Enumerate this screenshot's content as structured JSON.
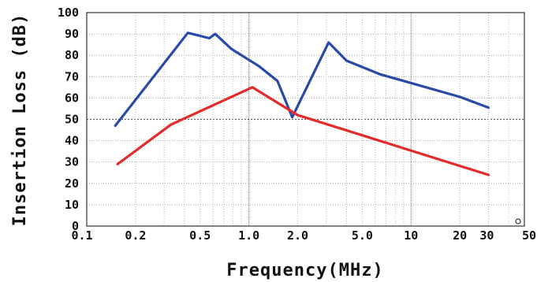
{
  "chart_data": {
    "type": "line",
    "title": "",
    "xlabel": "Frequency(MHz)",
    "ylabel": "Insertion Loss (dB)",
    "x_scale": "log",
    "xlim": [
      0.1,
      50
    ],
    "ylim": [
      0,
      100
    ],
    "x_ticks": [
      {
        "value": 0.1,
        "label": "0.1"
      },
      {
        "value": 0.2,
        "label": "0.2"
      },
      {
        "value": 0.5,
        "label": "0.5"
      },
      {
        "value": 1.0,
        "label": "1.0"
      },
      {
        "value": 2.0,
        "label": "2.0"
      },
      {
        "value": 5.0,
        "label": "5.0"
      },
      {
        "value": 10,
        "label": "10"
      },
      {
        "value": 20,
        "label": "20"
      },
      {
        "value": 30,
        "label": "30"
      },
      {
        "value": 50,
        "label": "50"
      }
    ],
    "y_ticks": [
      0,
      10,
      20,
      30,
      40,
      50,
      60,
      70,
      80,
      90,
      100
    ],
    "grid": true,
    "series": [
      {
        "color": "#2a4aa8",
        "points": [
          [
            0.15,
            47
          ],
          [
            0.42,
            90.5
          ],
          [
            0.57,
            88
          ],
          [
            0.62,
            90
          ],
          [
            0.78,
            83
          ],
          [
            1.15,
            75
          ],
          [
            1.5,
            68
          ],
          [
            1.85,
            51
          ],
          [
            3.1,
            86
          ],
          [
            4.0,
            77.5
          ],
          [
            6.5,
            71
          ],
          [
            10,
            67
          ],
          [
            20,
            60.5
          ],
          [
            30,
            55.5
          ]
        ]
      },
      {
        "color": "#e52a2a",
        "points": [
          [
            0.155,
            29
          ],
          [
            0.33,
            47.5
          ],
          [
            1.05,
            65
          ],
          [
            2.0,
            52
          ],
          [
            30,
            24
          ]
        ]
      }
    ]
  }
}
